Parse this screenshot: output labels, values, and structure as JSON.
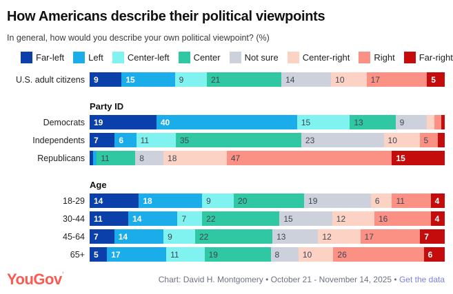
{
  "header": {
    "title": "How Americans describe their political viewpoints",
    "subtitle": "In general, how would you describe your own political viewpoint? (%)"
  },
  "legend": [
    {
      "label": "Far-left",
      "color": "#0b3fa9",
      "text_on": "light"
    },
    {
      "label": "Left",
      "color": "#1aade9",
      "text_on": "light"
    },
    {
      "label": "Center-left",
      "color": "#80f2f0",
      "text_on": "dark"
    },
    {
      "label": "Center",
      "color": "#30c7a3",
      "text_on": "dark"
    },
    {
      "label": "Not sure",
      "color": "#cdd1db",
      "text_on": "dark"
    },
    {
      "label": "Center-right",
      "color": "#fbd2c3",
      "text_on": "dark"
    },
    {
      "label": "Right",
      "color": "#fb9084",
      "text_on": "dark"
    },
    {
      "label": "Far-right",
      "color": "#c50c0c",
      "text_on": "light"
    }
  ],
  "chart_data": {
    "type": "bar",
    "stacked": true,
    "orientation": "horizontal",
    "unit": "%",
    "label_threshold": 4,
    "categories": [
      "Far-left",
      "Left",
      "Center-left",
      "Center",
      "Not sure",
      "Center-right",
      "Right",
      "Far-right"
    ],
    "groups": [
      {
        "title": "",
        "rows": [
          {
            "label": "U.S. adult citizens",
            "values": [
              9,
              15,
              9,
              21,
              14,
              10,
              17,
              5
            ]
          }
        ]
      },
      {
        "title": "Party ID",
        "rows": [
          {
            "label": "Democrats",
            "values": [
              19,
              40,
              15,
              13,
              9,
              2,
              2,
              1
            ]
          },
          {
            "label": "Independents",
            "values": [
              7,
              6,
              11,
              35,
              23,
              10,
              5,
              2
            ]
          },
          {
            "label": "Republicans",
            "values": [
              1,
              1,
              0,
              11,
              8,
              18,
              47,
              15
            ]
          }
        ]
      },
      {
        "title": "Age",
        "rows": [
          {
            "label": "18-29",
            "values": [
              14,
              18,
              9,
              20,
              19,
              6,
              11,
              4
            ]
          },
          {
            "label": "30-44",
            "values": [
              11,
              14,
              7,
              22,
              15,
              12,
              16,
              4
            ]
          },
          {
            "label": "45-64",
            "values": [
              7,
              14,
              9,
              22,
              13,
              12,
              17,
              7
            ]
          },
          {
            "label": "65+",
            "values": [
              5,
              17,
              11,
              19,
              8,
              10,
              26,
              6
            ]
          }
        ]
      }
    ]
  },
  "footer": {
    "logo_text": "YouGov",
    "credit_prefix": "Chart: David H. Montgomery • October 21 - November 14, 2025 • ",
    "link_label": "Get the data"
  }
}
